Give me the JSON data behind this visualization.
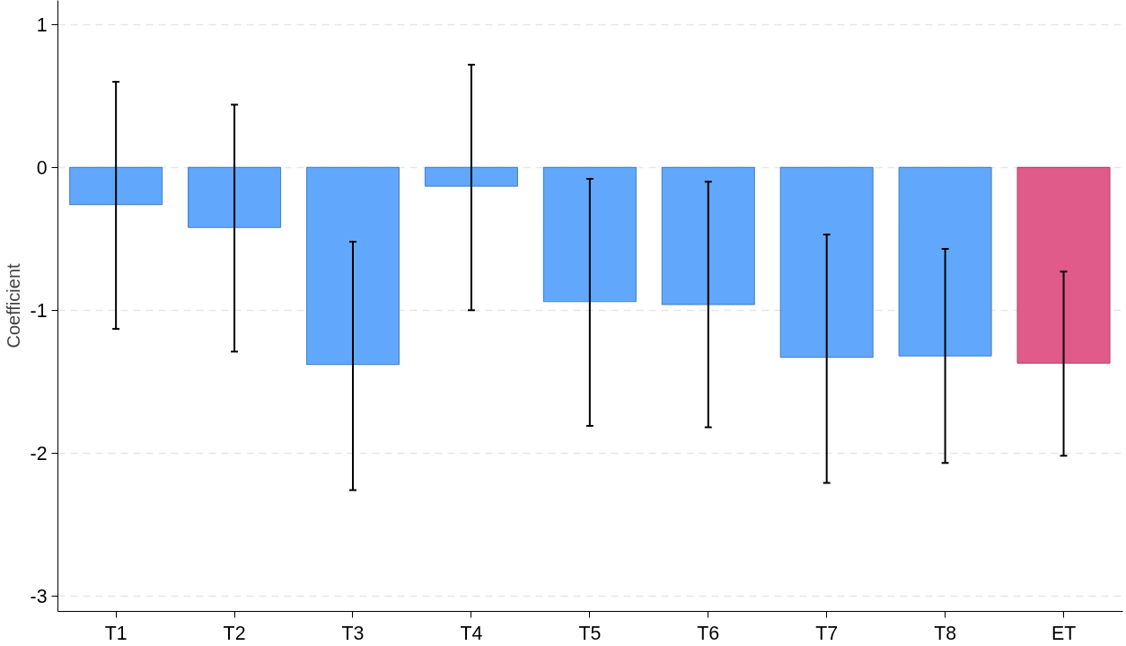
{
  "chart_data": {
    "type": "bar",
    "ylabel": "Coefficient",
    "categories": [
      "T1",
      "T2",
      "T3",
      "T4",
      "T5",
      "T6",
      "T7",
      "T8",
      "ET"
    ],
    "values": [
      -0.26,
      -0.42,
      -1.38,
      -0.13,
      -0.94,
      -0.96,
      -1.33,
      -1.32,
      -1.37
    ],
    "colors": [
      "#61a8fc",
      "#61a8fc",
      "#61a8fc",
      "#61a8fc",
      "#61a8fc",
      "#61a8fc",
      "#61a8fc",
      "#61a8fc",
      "#e05a8a"
    ],
    "errors": [
      [
        -1.13,
        0.6
      ],
      [
        -1.29,
        0.44
      ],
      [
        -2.26,
        -0.52
      ],
      [
        -1.0,
        0.72
      ],
      [
        -1.81,
        -0.08
      ],
      [
        -1.82,
        -0.1
      ],
      [
        -2.21,
        -0.47
      ],
      [
        -2.07,
        -0.57
      ],
      [
        -2.02,
        -0.73
      ]
    ],
    "ylim": [
      -3.11,
      1.17
    ],
    "yticks": [
      -3,
      -2,
      -1,
      0,
      1
    ],
    "grid": "y"
  }
}
